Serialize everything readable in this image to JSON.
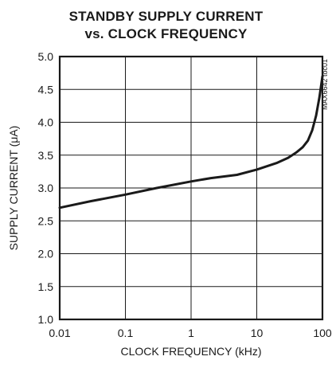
{
  "chart_data": {
    "type": "line",
    "title": "STANDBY SUPPLY CURRENT",
    "subtitle": "vs. CLOCK FREQUENCY",
    "xlabel": "CLOCK FREQUENCY (kHz)",
    "ylabel": "SUPPLY CURRENT (μA)",
    "x_scale": "log",
    "xlim": [
      0.01,
      100
    ],
    "ylim": [
      1.0,
      5.0
    ],
    "x_ticks": [
      0.01,
      0.1,
      1,
      10,
      100
    ],
    "x_tick_labels": [
      "0.01",
      "0.1",
      "1",
      "10",
      "100"
    ],
    "y_ticks": [
      1.0,
      1.5,
      2.0,
      2.5,
      3.0,
      3.5,
      4.0,
      4.5,
      5.0
    ],
    "y_tick_labels": [
      "1.0",
      "1.5",
      "2.0",
      "2.5",
      "3.0",
      "3.5",
      "4.0",
      "4.5",
      "5.0"
    ],
    "grid": true,
    "side_note": "MAX6642 toc01",
    "series": [
      {
        "x": [
          0.01,
          0.03,
          0.1,
          0.3,
          1,
          2,
          5,
          10,
          20,
          30,
          40,
          50,
          60,
          70,
          80,
          90,
          100
        ],
        "y": [
          2.7,
          2.8,
          2.9,
          3.0,
          3.1,
          3.15,
          3.2,
          3.28,
          3.38,
          3.46,
          3.54,
          3.62,
          3.72,
          3.88,
          4.1,
          4.38,
          4.7
        ]
      }
    ]
  }
}
